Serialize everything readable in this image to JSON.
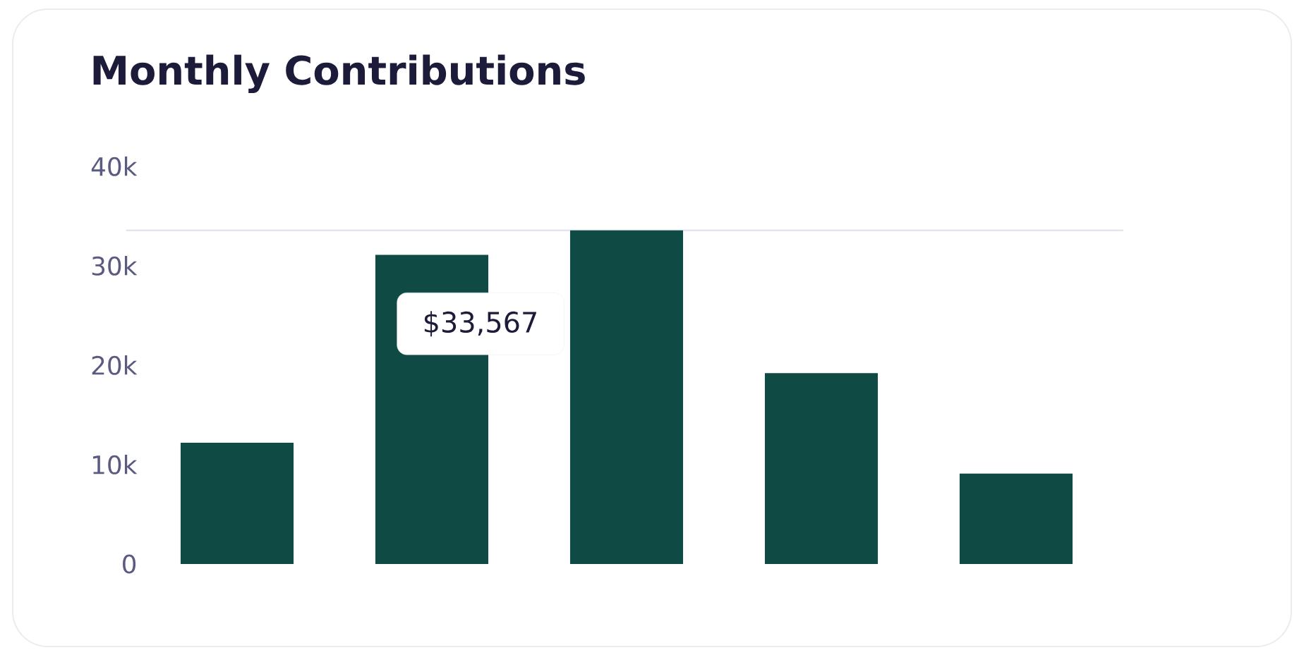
{
  "chart_data": {
    "type": "bar",
    "title": "Monthly Contributions",
    "categories": [
      null,
      null,
      null,
      null,
      null
    ],
    "values": [
      12200,
      31100,
      33567,
      19200,
      9100
    ],
    "color": "#0f4a45",
    "ylim": [
      0,
      40000
    ],
    "yticks": [
      {
        "value": 0,
        "label": "0"
      },
      {
        "value": 10000,
        "label": "10k"
      },
      {
        "value": 20000,
        "label": "20k"
      },
      {
        "value": 30000,
        "label": "30k"
      },
      {
        "value": 40000,
        "label": "40k"
      }
    ],
    "tick_labels": "y",
    "ref_lines": [
      {
        "axis": "y",
        "value": 33567,
        "color": "#e4e4ee"
      }
    ],
    "annotations": [
      {
        "text": "$33,567",
        "y": 33567
      }
    ]
  }
}
